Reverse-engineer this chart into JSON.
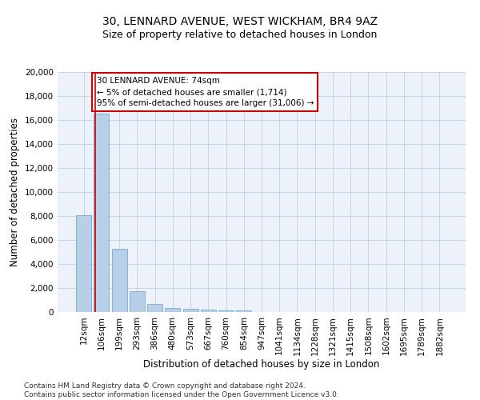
{
  "title": "30, LENNARD AVENUE, WEST WICKHAM, BR4 9AZ",
  "subtitle": "Size of property relative to detached houses in London",
  "xlabel": "Distribution of detached houses by size in London",
  "ylabel": "Number of detached properties",
  "categories": [
    "12sqm",
    "106sqm",
    "199sqm",
    "293sqm",
    "386sqm",
    "480sqm",
    "573sqm",
    "667sqm",
    "760sqm",
    "854sqm",
    "947sqm",
    "1041sqm",
    "1134sqm",
    "1228sqm",
    "1321sqm",
    "1415sqm",
    "1508sqm",
    "1602sqm",
    "1695sqm",
    "1789sqm",
    "1882sqm"
  ],
  "values": [
    8100,
    16500,
    5300,
    1750,
    700,
    350,
    260,
    200,
    150,
    130,
    0,
    0,
    0,
    0,
    0,
    0,
    0,
    0,
    0,
    0,
    0
  ],
  "bar_color": "#b8cfe8",
  "bar_edge_color": "#7aaad0",
  "background_color": "#edf2fa",
  "grid_color": "#c5cfe0",
  "annotation_box_text": "30 LENNARD AVENUE: 74sqm\n← 5% of detached houses are smaller (1,714)\n95% of semi-detached houses are larger (31,006) →",
  "annotation_box_color": "#cc0000",
  "ylim": [
    0,
    20000
  ],
  "yticks": [
    0,
    2000,
    4000,
    6000,
    8000,
    10000,
    12000,
    14000,
    16000,
    18000,
    20000
  ],
  "footnote": "Contains HM Land Registry data © Crown copyright and database right 2024.\nContains public sector information licensed under the Open Government Licence v3.0.",
  "title_fontsize": 10,
  "subtitle_fontsize": 9,
  "xlabel_fontsize": 8.5,
  "ylabel_fontsize": 8.5,
  "tick_fontsize": 7.5,
  "annot_fontsize": 7.5,
  "footnote_fontsize": 6.5
}
